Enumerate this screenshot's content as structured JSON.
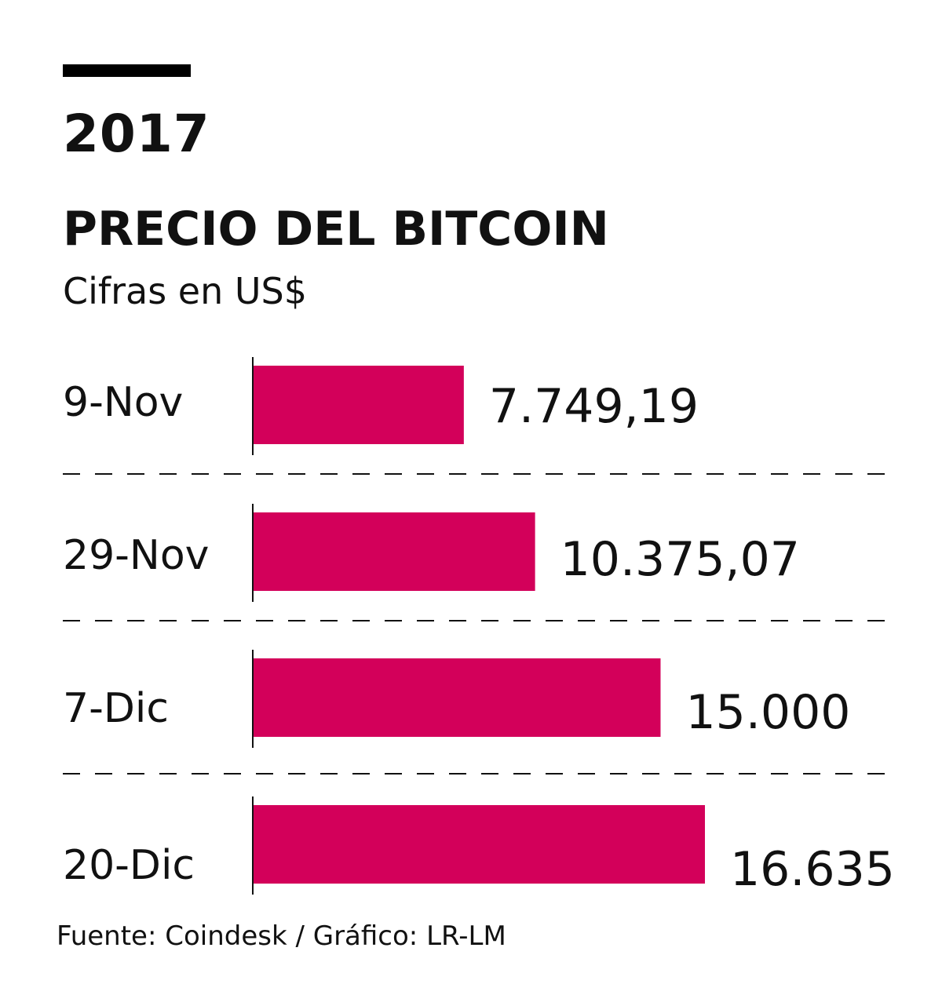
{
  "header": {
    "year": "2017",
    "title": "PRECIO DEL BITCOIN",
    "subtitle": "Cifras en US$"
  },
  "chart_data": {
    "type": "bar",
    "orientation": "horizontal",
    "categories": [
      "9-Nov",
      "29-Nov",
      "7-Dic",
      "20-Dic"
    ],
    "values": [
      7749.19,
      10375.07,
      15000,
      16635
    ],
    "value_labels": [
      "7.749,19",
      "10.375,07",
      "15.000",
      "16.635"
    ],
    "title": "PRECIO DEL BITCOIN",
    "subtitle": "Cifras en US$",
    "xlim": [
      0,
      18600
    ],
    "grid": false,
    "bar_color": "#d3005a",
    "separator_style": "dashed"
  },
  "footer": {
    "source": "Fuente: Coindesk / Gráfico: LR-LM"
  },
  "colors": {
    "accent": "#000000",
    "bar": "#d3005a",
    "text": "#111111"
  }
}
